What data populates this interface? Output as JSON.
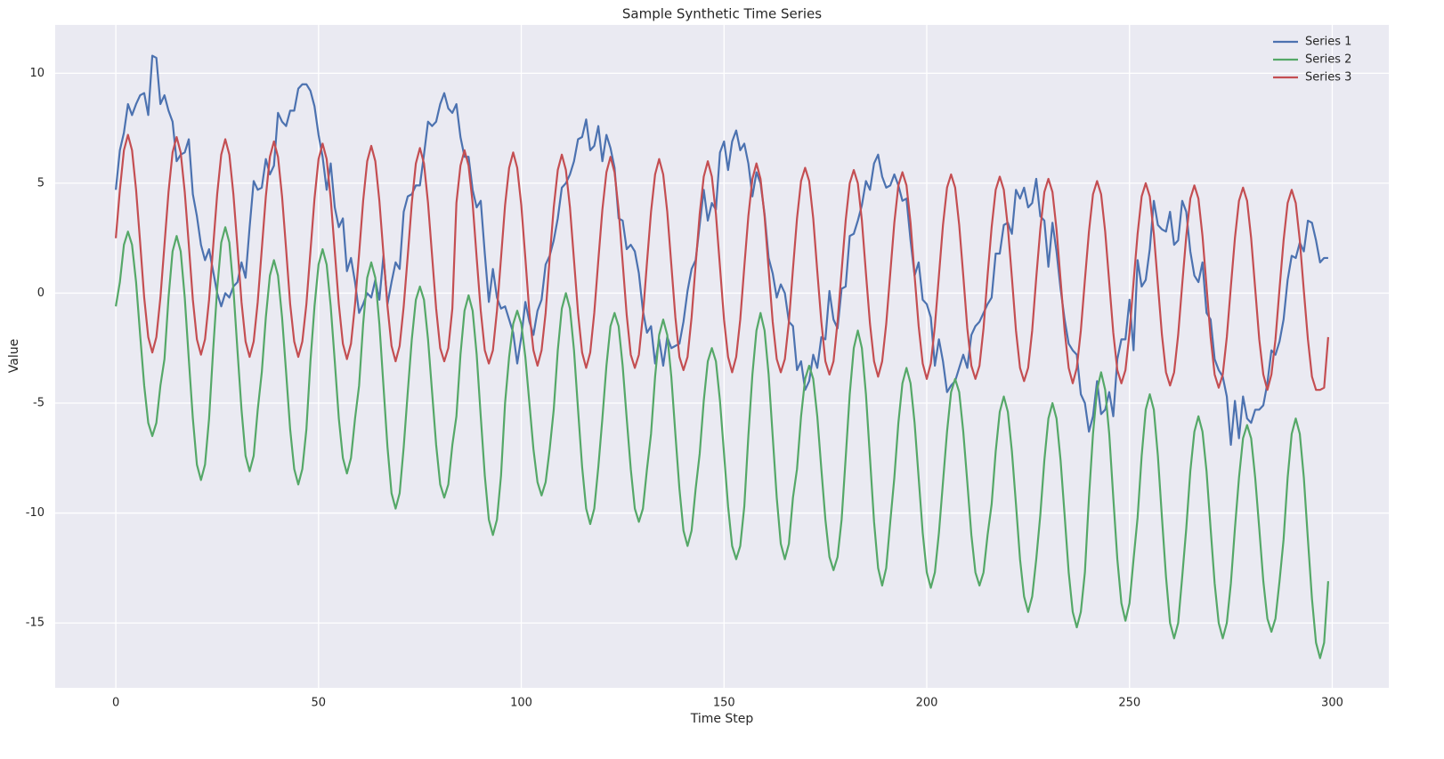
{
  "chart_data": {
    "type": "line",
    "title": "Sample Synthetic Time Series",
    "x_label": "Time Step",
    "y_label": "Value",
    "xlim": [
      -14.95,
      313.95
    ],
    "ylim": [
      -17.95,
      12.2
    ],
    "xticks": [
      0,
      50,
      100,
      150,
      200,
      250,
      300
    ],
    "yticks": [
      -15,
      -10,
      -5,
      0,
      5,
      10
    ],
    "grid": true,
    "legend": "upper right",
    "x": [
      0,
      1,
      2,
      3,
      4,
      5,
      6,
      7,
      8,
      9,
      10,
      11,
      12,
      13,
      14,
      15,
      16,
      17,
      18,
      19,
      20,
      21,
      22,
      23,
      24,
      25,
      26,
      27,
      28,
      29,
      30,
      31,
      32,
      33,
      34,
      35,
      36,
      37,
      38,
      39,
      40,
      41,
      42,
      43,
      44,
      45,
      46,
      47,
      48,
      49,
      50,
      51,
      52,
      53,
      54,
      55,
      56,
      57,
      58,
      59,
      60,
      61,
      62,
      63,
      64,
      65,
      66,
      67,
      68,
      69,
      70,
      71,
      72,
      73,
      74,
      75,
      76,
      77,
      78,
      79,
      80,
      81,
      82,
      83,
      84,
      85,
      86,
      87,
      88,
      89,
      90,
      91,
      92,
      93,
      94,
      95,
      96,
      97,
      98,
      99,
      100,
      101,
      102,
      103,
      104,
      105,
      106,
      107,
      108,
      109,
      110,
      111,
      112,
      113,
      114,
      115,
      116,
      117,
      118,
      119,
      120,
      121,
      122,
      123,
      124,
      125,
      126,
      127,
      128,
      129,
      130,
      131,
      132,
      133,
      134,
      135,
      136,
      137,
      138,
      139,
      140,
      141,
      142,
      143,
      144,
      145,
      146,
      147,
      148,
      149,
      150,
      151,
      152,
      153,
      154,
      155,
      156,
      157,
      158,
      159,
      160,
      161,
      162,
      163,
      164,
      165,
      166,
      167,
      168,
      169,
      170,
      171,
      172,
      173,
      174,
      175,
      176,
      177,
      178,
      179,
      180,
      181,
      182,
      183,
      184,
      185,
      186,
      187,
      188,
      189,
      190,
      191,
      192,
      193,
      194,
      195,
      196,
      197,
      198,
      199,
      200,
      201,
      202,
      203,
      204,
      205,
      206,
      207,
      208,
      209,
      210,
      211,
      212,
      213,
      214,
      215,
      216,
      217,
      218,
      219,
      220,
      221,
      222,
      223,
      224,
      225,
      226,
      227,
      228,
      229,
      230,
      231,
      232,
      233,
      234,
      235,
      236,
      237,
      238,
      239,
      240,
      241,
      242,
      243,
      244,
      245,
      246,
      247,
      248,
      249,
      250,
      251,
      252,
      253,
      254,
      255,
      256,
      257,
      258,
      259,
      260,
      261,
      262,
      263,
      264,
      265,
      266,
      267,
      268,
      269,
      270,
      271,
      272,
      273,
      274,
      275,
      276,
      277,
      278,
      279,
      280,
      281,
      282,
      283,
      284,
      285,
      286,
      287,
      288,
      289,
      290,
      291,
      292,
      293,
      294,
      295,
      296,
      297,
      298,
      299
    ],
    "series": [
      {
        "name": "Series 1",
        "color": "#4c72b0",
        "values": [
          4.7,
          6.5,
          7.3,
          8.6,
          8.1,
          8.6,
          9.0,
          9.1,
          8.1,
          10.8,
          10.7,
          8.6,
          9.0,
          8.3,
          7.8,
          6.0,
          6.3,
          6.4,
          7.0,
          4.5,
          3.5,
          2.2,
          1.5,
          2.0,
          1.0,
          0.0,
          -0.6,
          0.0,
          -0.2,
          0.3,
          0.5,
          1.4,
          0.7,
          3.0,
          5.1,
          4.7,
          4.8,
          6.1,
          5.4,
          5.8,
          8.2,
          7.8,
          7.6,
          8.3,
          8.3,
          9.3,
          9.5,
          9.5,
          9.2,
          8.5,
          7.2,
          6.2,
          4.7,
          5.9,
          3.9,
          3.0,
          3.4,
          1.0,
          1.6,
          0.5,
          -0.9,
          -0.5,
          0.0,
          -0.2,
          0.6,
          -0.3,
          1.7,
          -0.5,
          0.5,
          1.4,
          1.1,
          3.7,
          4.4,
          4.5,
          4.9,
          4.9,
          6.3,
          7.8,
          7.6,
          7.8,
          8.6,
          9.1,
          8.4,
          8.2,
          8.6,
          7.1,
          6.2,
          6.2,
          4.7,
          3.9,
          4.2,
          1.8,
          -0.4,
          1.1,
          -0.2,
          -0.7,
          -0.6,
          -1.2,
          -1.8,
          -3.2,
          -2.0,
          -0.4,
          -1.3,
          -1.9,
          -0.8,
          -0.3,
          1.3,
          1.7,
          2.4,
          3.4,
          4.8,
          5.0,
          5.4,
          6.0,
          7.0,
          7.1,
          7.9,
          6.5,
          6.7,
          7.6,
          6.0,
          7.2,
          6.6,
          5.7,
          3.4,
          3.3,
          2.0,
          2.2,
          1.9,
          0.9,
          -0.8,
          -1.8,
          -1.5,
          -3.2,
          -2.1,
          -3.3,
          -2.0,
          -2.5,
          -2.4,
          -2.3,
          -1.3,
          0.1,
          1.1,
          1.5,
          3.1,
          4.7,
          3.3,
          4.1,
          3.8,
          6.4,
          6.9,
          5.6,
          6.9,
          7.4,
          6.5,
          6.8,
          5.9,
          4.4,
          5.5,
          5.0,
          3.6,
          1.6,
          0.9,
          -0.2,
          0.4,
          0.0,
          -1.3,
          -1.5,
          -3.5,
          -3.1,
          -4.4,
          -4.0,
          -2.8,
          -3.4,
          -2.0,
          -2.1,
          0.1,
          -1.2,
          -1.6,
          0.2,
          0.3,
          2.6,
          2.7,
          3.3,
          4.0,
          5.1,
          4.7,
          5.9,
          6.3,
          5.3,
          4.8,
          4.9,
          5.4,
          4.9,
          4.2,
          4.3,
          2.4,
          0.8,
          1.4,
          -0.3,
          -0.5,
          -1.1,
          -3.3,
          -2.1,
          -3.1,
          -4.5,
          -4.2,
          -4.0,
          -3.4,
          -2.8,
          -3.4,
          -1.9,
          -1.5,
          -1.3,
          -0.9,
          -0.5,
          -0.2,
          1.8,
          1.8,
          3.1,
          3.2,
          2.7,
          4.7,
          4.3,
          4.8,
          3.9,
          4.1,
          5.2,
          3.5,
          3.3,
          1.2,
          3.2,
          1.9,
          0.2,
          -1.2,
          -2.3,
          -2.6,
          -2.8,
          -4.6,
          -5.0,
          -6.3,
          -5.6,
          -4.0,
          -5.5,
          -5.3,
          -4.5,
          -5.6,
          -3.0,
          -2.1,
          -2.1,
          -0.3,
          -2.6,
          1.5,
          0.3,
          0.6,
          2.0,
          4.2,
          3.1,
          2.9,
          2.8,
          3.7,
          2.2,
          2.4,
          4.2,
          3.7,
          1.9,
          0.8,
          0.5,
          1.4,
          -0.9,
          -1.2,
          -3.0,
          -3.5,
          -3.8,
          -4.7,
          -6.9,
          -4.9,
          -6.6,
          -4.7,
          -5.7,
          -5.9,
          -5.3,
          -5.3,
          -5.1,
          -4.1,
          -2.6,
          -2.8,
          -2.2,
          -1.2,
          0.6,
          1.7,
          1.6,
          2.3,
          1.9,
          3.3,
          3.2,
          2.4,
          1.4,
          1.6,
          1.6
        ]
      },
      {
        "name": "Series 2",
        "color": "#55a868",
        "values": [
          -0.6,
          0.5,
          2.2,
          2.8,
          2.2,
          0.5,
          -1.9,
          -4.2,
          -5.9,
          -6.5,
          -5.9,
          -4.2,
          -3.0,
          -0.2,
          1.9,
          2.6,
          1.9,
          -0.2,
          -3.0,
          -5.7,
          -7.8,
          -8.5,
          -7.8,
          -5.7,
          -2.6,
          0.2,
          2.3,
          3.0,
          2.3,
          0.2,
          -2.6,
          -5.3,
          -7.4,
          -8.1,
          -7.4,
          -5.3,
          -3.6,
          -1.1,
          0.8,
          1.5,
          0.8,
          -1.1,
          -3.6,
          -6.2,
          -8.0,
          -8.7,
          -8.0,
          -6.2,
          -3.1,
          -0.6,
          1.3,
          2.0,
          1.3,
          -0.6,
          -3.1,
          -5.7,
          -7.5,
          -8.2,
          -7.5,
          -5.7,
          -4.2,
          -1.4,
          0.7,
          1.4,
          0.7,
          -1.4,
          -4.2,
          -7.0,
          -9.1,
          -9.8,
          -9.1,
          -7.0,
          -4.5,
          -2.1,
          -0.3,
          0.3,
          -0.3,
          -2.1,
          -4.5,
          -6.9,
          -8.7,
          -9.3,
          -8.7,
          -6.9,
          -5.6,
          -2.8,
          -0.8,
          -0.1,
          -0.8,
          -2.8,
          -5.6,
          -8.3,
          -10.3,
          -11.0,
          -10.3,
          -8.3,
          -5.0,
          -2.9,
          -1.4,
          -0.8,
          -1.4,
          -2.9,
          -5.0,
          -7.1,
          -8.6,
          -9.2,
          -8.6,
          -7.1,
          -5.3,
          -2.6,
          -0.7,
          0.0,
          -0.7,
          -2.6,
          -5.3,
          -7.9,
          -9.8,
          -10.5,
          -9.8,
          -7.9,
          -5.7,
          -3.3,
          -1.5,
          -0.9,
          -1.5,
          -3.3,
          -5.7,
          -8.0,
          -9.8,
          -10.4,
          -9.8,
          -8.0,
          -6.4,
          -3.8,
          -1.9,
          -1.2,
          -1.9,
          -3.8,
          -6.4,
          -8.9,
          -10.8,
          -11.5,
          -10.8,
          -8.9,
          -7.3,
          -4.9,
          -3.1,
          -2.5,
          -3.1,
          -4.9,
          -7.3,
          -9.7,
          -11.5,
          -12.1,
          -11.5,
          -9.7,
          -6.5,
          -3.7,
          -1.7,
          -0.9,
          -1.7,
          -3.7,
          -6.5,
          -9.3,
          -11.4,
          -12.1,
          -11.4,
          -9.3,
          -8.0,
          -5.6,
          -3.9,
          -3.3,
          -3.9,
          -5.6,
          -8.0,
          -10.3,
          -12.0,
          -12.6,
          -12.0,
          -10.3,
          -7.5,
          -4.6,
          -2.5,
          -1.7,
          -2.5,
          -4.6,
          -7.5,
          -10.4,
          -12.5,
          -13.3,
          -12.5,
          -10.4,
          -8.4,
          -5.9,
          -4.1,
          -3.4,
          -4.1,
          -5.9,
          -8.4,
          -10.9,
          -12.7,
          -13.4,
          -12.7,
          -10.9,
          -8.6,
          -6.3,
          -4.5,
          -3.9,
          -4.5,
          -6.3,
          -8.6,
          -11.0,
          -12.7,
          -13.3,
          -12.7,
          -11.0,
          -9.6,
          -7.2,
          -5.4,
          -4.7,
          -5.4,
          -7.2,
          -9.6,
          -12.1,
          -13.8,
          -14.5,
          -13.8,
          -12.1,
          -10.1,
          -7.6,
          -5.7,
          -5.0,
          -5.7,
          -7.6,
          -10.1,
          -12.7,
          -14.5,
          -15.2,
          -14.5,
          -12.7,
          -9.3,
          -6.4,
          -4.4,
          -3.6,
          -4.4,
          -6.4,
          -9.3,
          -12.1,
          -14.1,
          -14.9,
          -14.1,
          -12.1,
          -10.2,
          -7.4,
          -5.3,
          -4.6,
          -5.3,
          -7.4,
          -10.2,
          -12.9,
          -15.0,
          -15.7,
          -15.0,
          -12.9,
          -10.7,
          -8.1,
          -6.3,
          -5.6,
          -6.3,
          -8.1,
          -10.7,
          -13.2,
          -15.0,
          -15.7,
          -15.0,
          -13.2,
          -10.7,
          -8.4,
          -6.6,
          -6.0,
          -6.6,
          -8.4,
          -10.7,
          -13.1,
          -14.8,
          -15.4,
          -14.8,
          -13.1,
          -11.2,
          -8.4,
          -6.4,
          -5.7,
          -6.4,
          -8.4,
          -11.2,
          -13.9,
          -15.9,
          -16.6,
          -15.9,
          -13.1
        ]
      },
      {
        "name": "Series 3",
        "color": "#c44e52",
        "values": [
          2.5,
          4.7,
          6.5,
          7.2,
          6.5,
          4.7,
          2.3,
          -0.2,
          -2.0,
          -2.7,
          -2.0,
          -0.2,
          2.2,
          4.6,
          6.4,
          7.1,
          6.4,
          4.6,
          2.2,
          -0.3,
          -2.1,
          -2.8,
          -2.1,
          -0.3,
          2.1,
          4.5,
          6.3,
          7.0,
          6.3,
          4.5,
          2.1,
          -0.4,
          -2.2,
          -2.9,
          -2.2,
          -0.4,
          2.0,
          4.4,
          6.2,
          6.9,
          6.2,
          4.4,
          2.0,
          -0.5,
          -2.2,
          -2.9,
          -2.2,
          -0.5,
          1.9,
          4.3,
          6.1,
          6.8,
          6.1,
          4.3,
          1.9,
          -0.5,
          -2.3,
          -3.0,
          -2.3,
          -0.5,
          1.8,
          4.2,
          6.0,
          6.7,
          6.0,
          4.2,
          1.8,
          -0.6,
          -2.4,
          -3.1,
          -2.4,
          -0.6,
          1.7,
          4.1,
          5.9,
          6.6,
          5.9,
          4.1,
          1.7,
          -0.7,
          -2.5,
          -3.1,
          -2.5,
          -0.7,
          4.1,
          5.8,
          6.5,
          5.8,
          4.1,
          1.6,
          -0.8,
          -2.6,
          -3.2,
          -2.6,
          -0.8,
          1.6,
          4.0,
          5.7,
          6.4,
          5.7,
          4.0,
          1.6,
          -0.9,
          -2.6,
          -3.3,
          -2.6,
          -0.9,
          1.6,
          3.9,
          5.6,
          6.3,
          5.6,
          3.9,
          1.5,
          -0.9,
          -2.7,
          -3.4,
          -2.7,
          -0.9,
          1.5,
          3.8,
          5.5,
          6.2,
          5.5,
          3.8,
          1.4,
          -1.0,
          -2.8,
          -3.4,
          -2.8,
          -1.0,
          1.4,
          3.7,
          5.4,
          6.1,
          5.4,
          3.7,
          1.3,
          -1.1,
          -2.9,
          -3.5,
          -2.9,
          -1.1,
          1.3,
          3.6,
          5.3,
          6.0,
          5.3,
          3.6,
          1.2,
          -1.2,
          -2.9,
          -3.6,
          -2.9,
          -1.2,
          1.2,
          3.5,
          5.2,
          5.9,
          5.2,
          3.5,
          1.1,
          -1.3,
          -3.0,
          -3.6,
          -3.0,
          -1.3,
          1.1,
          3.4,
          5.1,
          5.7,
          5.1,
          3.4,
          1.0,
          -1.3,
          -3.1,
          -3.7,
          -3.1,
          -1.3,
          1.0,
          3.3,
          5.0,
          5.6,
          5.0,
          3.3,
          0.9,
          -1.4,
          -3.1,
          -3.8,
          -3.1,
          -1.4,
          0.9,
          3.2,
          4.9,
          5.5,
          4.9,
          3.2,
          0.8,
          -1.5,
          -3.2,
          -3.9,
          -3.2,
          -1.5,
          0.8,
          3.1,
          4.8,
          5.4,
          4.8,
          3.1,
          0.8,
          -1.6,
          -3.3,
          -3.9,
          -3.3,
          -1.6,
          0.8,
          3.0,
          4.7,
          5.3,
          4.7,
          3.0,
          0.7,
          -1.7,
          -3.4,
          -4.0,
          -3.4,
          -1.7,
          0.7,
          2.9,
          4.6,
          5.2,
          4.6,
          2.9,
          0.6,
          -1.7,
          -3.4,
          -4.1,
          -3.4,
          -1.7,
          0.6,
          2.8,
          4.5,
          5.1,
          4.5,
          2.8,
          0.5,
          -1.8,
          -3.5,
          -4.1,
          -3.5,
          -1.8,
          0.5,
          2.7,
          4.4,
          5.0,
          4.4,
          2.7,
          0.4,
          -1.9,
          -3.6,
          -4.2,
          -3.6,
          -1.9,
          0.4,
          2.6,
          4.3,
          4.9,
          4.3,
          2.6,
          0.3,
          -2.0,
          -3.7,
          -4.3,
          -3.7,
          -2.0,
          0.3,
          2.5,
          4.2,
          4.8,
          4.2,
          2.5,
          0.2,
          -2.1,
          -3.7,
          -4.4,
          -3.7,
          -2.1,
          0.2,
          2.4,
          4.1,
          4.7,
          4.1,
          2.4,
          0.1,
          -2.1,
          -3.8,
          -4.4,
          -4.4,
          -4.3,
          -2.0
        ]
      }
    ]
  }
}
